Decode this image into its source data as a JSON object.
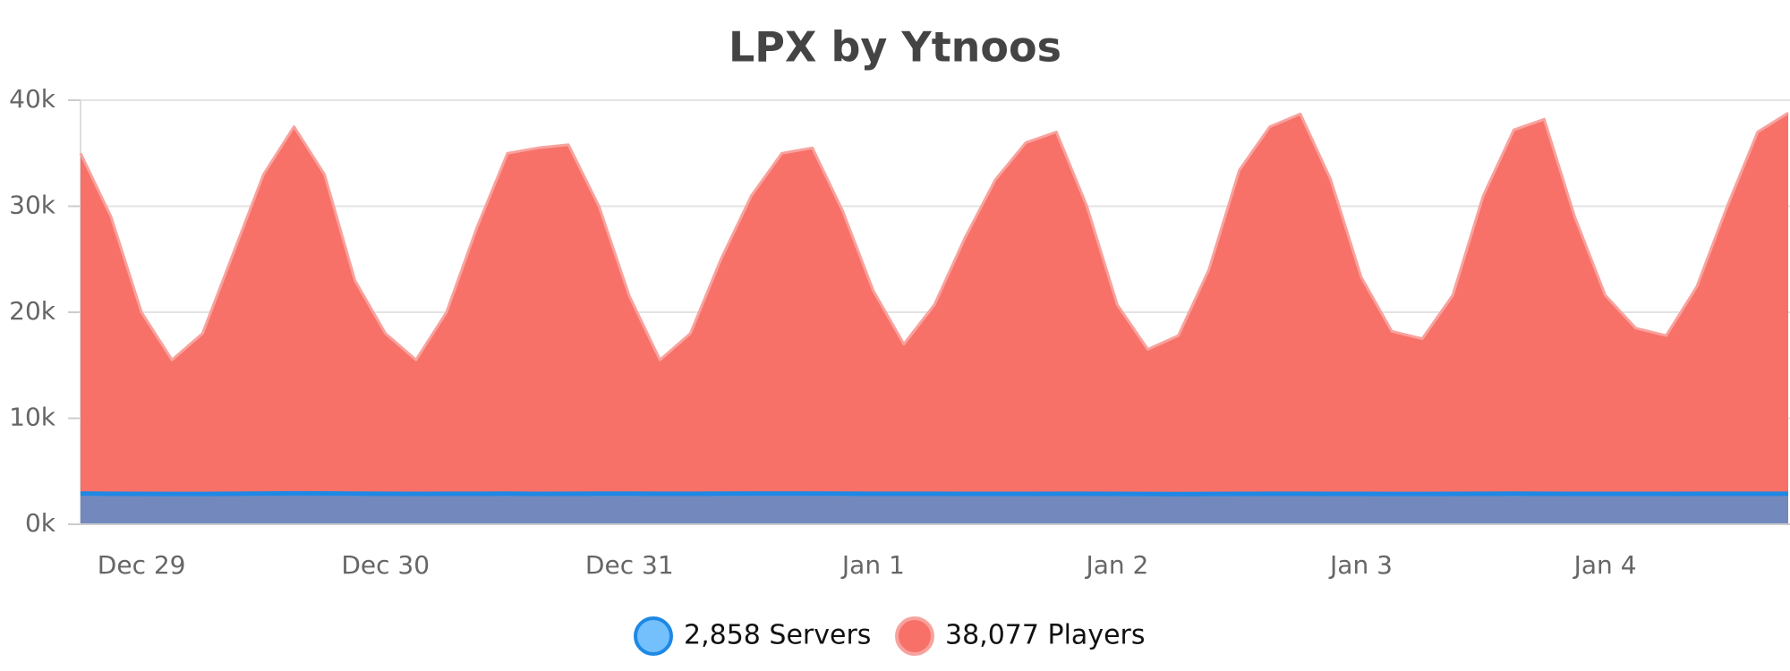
{
  "chart_data": {
    "type": "area",
    "title": "LPX by Ytnoos",
    "categories": [
      null,
      null,
      "Dec 29",
      null,
      null,
      null,
      null,
      null,
      null,
      null,
      "Dec 30",
      null,
      null,
      null,
      null,
      null,
      null,
      null,
      "Dec 31",
      null,
      null,
      null,
      null,
      null,
      null,
      null,
      "Jan 1",
      null,
      null,
      null,
      null,
      null,
      null,
      null,
      "Jan 2",
      null,
      null,
      null,
      null,
      null,
      null,
      null,
      "Jan 3",
      null,
      null,
      null,
      null,
      null,
      null,
      null,
      "Jan 4",
      null,
      null,
      null,
      null,
      null,
      null
    ],
    "series": [
      {
        "name": "2,858 Servers",
        "color": "#1e88e5",
        "values": [
          2900,
          2880,
          2870,
          2860,
          2860,
          2880,
          2900,
          2920,
          2910,
          2890,
          2880,
          2870,
          2880,
          2880,
          2890,
          2870,
          2880,
          2890,
          2890,
          2880,
          2880,
          2890,
          2900,
          2900,
          2900,
          2890,
          2880,
          2880,
          2880,
          2870,
          2870,
          2870,
          2880,
          2880,
          2870,
          2860,
          2850,
          2860,
          2870,
          2880,
          2880,
          2870,
          2870,
          2860,
          2860,
          2870,
          2880,
          2890,
          2880,
          2870,
          2870,
          2870,
          2870,
          2880,
          2880,
          2880,
          2880
        ]
      },
      {
        "name": "38,077 Players",
        "color": "#f77169",
        "values": [
          35000,
          29000,
          20000,
          15500,
          18000,
          25500,
          33000,
          37500,
          33000,
          23000,
          18000,
          15500,
          20000,
          28000,
          35000,
          35500,
          35800,
          30000,
          21500,
          15500,
          18000,
          25000,
          31000,
          35000,
          35500,
          29500,
          22000,
          17000,
          20700,
          27000,
          32500,
          36000,
          37000,
          30000,
          20700,
          16500,
          17800,
          24000,
          33400,
          37500,
          38700,
          32500,
          23300,
          18200,
          17500,
          21600,
          31000,
          37200,
          38200,
          29000,
          21600,
          18500,
          17800,
          22400,
          30000,
          37000,
          38800
        ]
      }
    ],
    "ylim": [
      0,
      40000
    ],
    "yticks": [
      {
        "value": 0,
        "label": "0k"
      },
      {
        "value": 10000,
        "label": "10k"
      },
      {
        "value": 20000,
        "label": "20k"
      },
      {
        "value": 30000,
        "label": "30k"
      },
      {
        "value": 40000,
        "label": "40k"
      }
    ],
    "grid": true
  }
}
